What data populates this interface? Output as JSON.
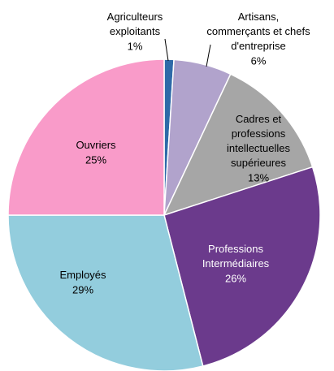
{
  "chart_data": {
    "type": "pie",
    "categories": [
      "Agriculteurs\nexploitants",
      "Artisans,\ncommerçants et chefs\nd'entreprise",
      "Cadres et\nprofessions\nintellectuelles\nsupérieures",
      "Professions\nIntermédiaires",
      "Employés",
      "Ouvriers"
    ],
    "values": [
      1,
      6,
      13,
      26,
      29,
      25
    ],
    "value_labels": [
      "1%",
      "6%",
      "13%",
      "26%",
      "29%",
      "25%"
    ],
    "colors": [
      "#2e6aa8",
      "#b1a3cc",
      "#a6a6a6",
      "#6b3a8c",
      "#93cddd",
      "#f99bc9"
    ]
  }
}
